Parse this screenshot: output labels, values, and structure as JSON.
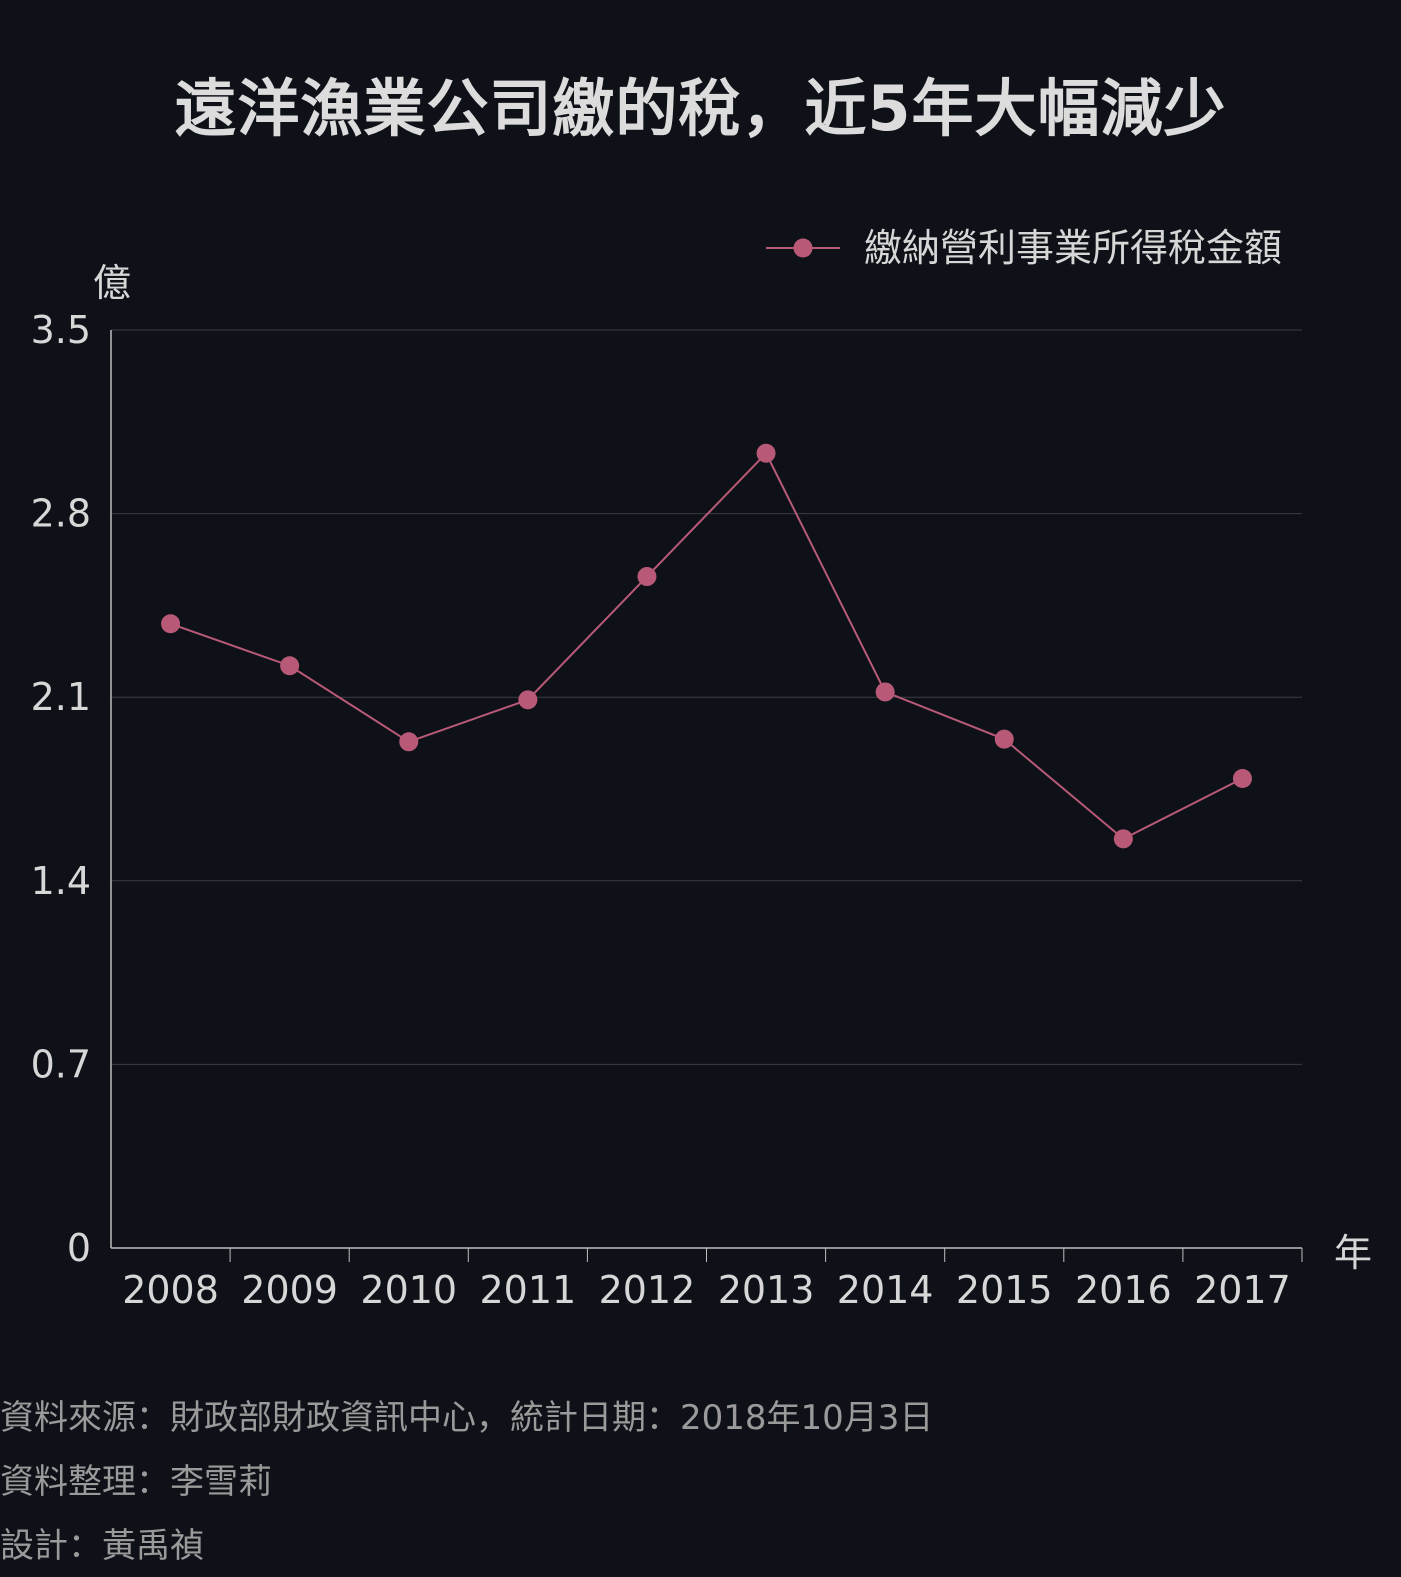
{
  "title": "遠洋漁業公司繳的稅，近5年大幅減少",
  "colors": {
    "background": "#0e1117",
    "series": "#b85a77",
    "grid": "#3a3d44",
    "axis": "#bdbdbd",
    "text": "#d7d7d7",
    "muted_text": "#9a9a9a"
  },
  "chart_data": {
    "type": "line",
    "title": "遠洋漁業公司繳的稅，近5年大幅減少",
    "xlabel": "年",
    "ylabel": "億",
    "x": [
      "2008",
      "2009",
      "2010",
      "2011",
      "2012",
      "2013",
      "2014",
      "2015",
      "2016",
      "2017"
    ],
    "series": [
      {
        "name": "繳納營利事業所得稅金額",
        "values": [
          2.38,
          2.22,
          1.93,
          2.09,
          2.56,
          3.03,
          2.12,
          1.94,
          1.56,
          1.79
        ]
      }
    ],
    "ylim": [
      0,
      3.5
    ],
    "yticks": [
      "0",
      "0.7",
      "1.4",
      "2.1",
      "2.8",
      "3.5"
    ],
    "grid": true,
    "legend_position": "top-right"
  },
  "footer": {
    "source": "資料來源：財政部財政資訊中心，統計日期：2018年10月3日",
    "compiler": "資料整理：李雪莉",
    "designer": "設計：黃禹禎"
  }
}
